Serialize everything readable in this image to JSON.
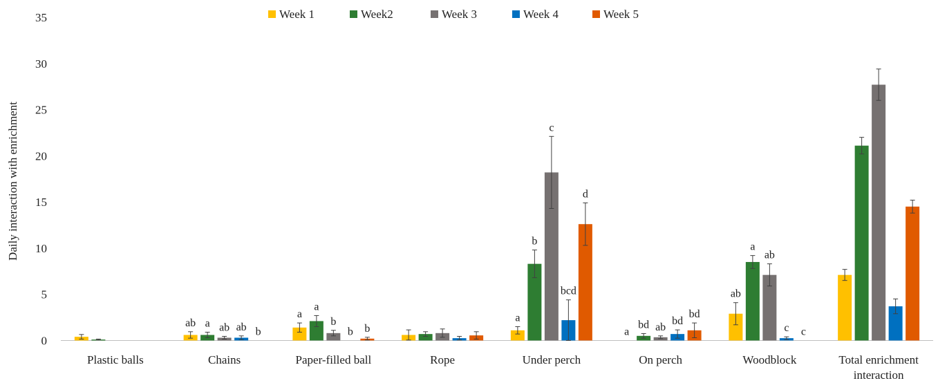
{
  "chart_data": {
    "type": "bar",
    "title": "",
    "xlabel": "",
    "ylabel": "Daily interaction with enrichment",
    "ylim": [
      0,
      35
    ],
    "yticks": [
      0,
      5,
      10,
      15,
      20,
      25,
      30,
      35
    ],
    "grid": false,
    "legend_position": "top",
    "categories": [
      "Plastic balls",
      "Chains",
      "Paper-filled ball",
      "Rope",
      "Under perch",
      "On perch",
      "Woodblock",
      "Total enrichment interaction"
    ],
    "series": [
      {
        "name": "Week 1",
        "color": "#FFC000",
        "values": [
          0.4,
          0.6,
          1.4,
          0.6,
          1.1,
          0,
          2.9,
          7.1
        ],
        "errors": [
          0.25,
          0.35,
          0.5,
          0.55,
          0.4,
          0,
          1.2,
          0.6
        ],
        "labels": [
          "",
          "ab",
          "a",
          "",
          "a",
          "a",
          "ab",
          ""
        ]
      },
      {
        "name": "Week2",
        "color": "#2E7D32",
        "values": [
          0.1,
          0.6,
          2.1,
          0.7,
          8.3,
          0.5,
          8.5,
          21.1
        ],
        "errors": [
          0.05,
          0.3,
          0.6,
          0.25,
          1.5,
          0.25,
          0.7,
          0.9
        ],
        "labels": [
          "",
          "a",
          "a",
          "",
          "b",
          "bd",
          "a",
          ""
        ]
      },
      {
        "name": "Week 3",
        "color": "#767171",
        "values": [
          0,
          0.3,
          0.8,
          0.8,
          18.2,
          0.35,
          7.1,
          27.7
        ],
        "errors": [
          0,
          0.15,
          0.3,
          0.45,
          3.9,
          0.15,
          1.2,
          1.7
        ],
        "labels": [
          "",
          "ab",
          "b",
          "",
          "c",
          "ab",
          "ab",
          ""
        ]
      },
      {
        "name": "Week 4",
        "color": "#0070C0",
        "values": [
          0,
          0.3,
          0,
          0.25,
          2.2,
          0.7,
          0.25,
          3.7
        ],
        "errors": [
          0,
          0.2,
          0,
          0.2,
          2.2,
          0.45,
          0.15,
          0.8
        ],
        "labels": [
          "",
          "ab",
          "b",
          "",
          "bcd",
          "bd",
          "c",
          ""
        ]
      },
      {
        "name": "Week 5",
        "color": "#E05A00",
        "values": [
          0,
          0,
          0.2,
          0.55,
          12.6,
          1.1,
          0,
          14.5
        ],
        "errors": [
          0,
          0,
          0.15,
          0.4,
          2.3,
          0.8,
          0,
          0.7
        ],
        "labels": [
          "",
          "b",
          "b",
          "",
          "d",
          "bd",
          "c",
          ""
        ]
      }
    ]
  }
}
